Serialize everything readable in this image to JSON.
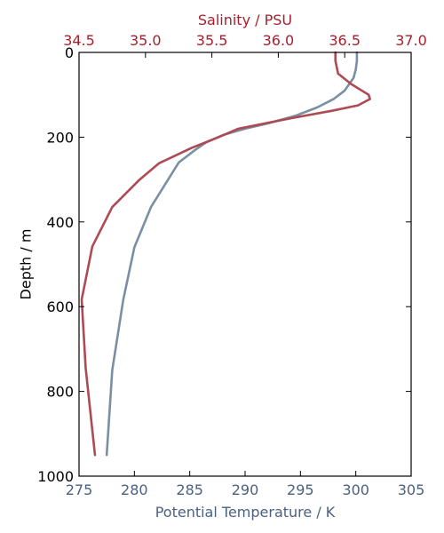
{
  "chart_data": {
    "type": "line",
    "title": "",
    "ylabel": "Depth / m",
    "xlabel_bottom": "Potential Temperature / K",
    "xlabel_top": "Salinity / PSU",
    "ylim": [
      1000,
      0
    ],
    "xlim_bottom": [
      275,
      305
    ],
    "xlim_top": [
      34.5,
      37.0
    ],
    "y_ticks": [
      "0",
      "200",
      "400",
      "600",
      "800",
      "1000"
    ],
    "y_tick_values": [
      0,
      200,
      400,
      600,
      800,
      1000
    ],
    "x_ticks_bottom": [
      "275",
      "280",
      "285",
      "290",
      "295",
      "300",
      "305"
    ],
    "x_tick_values_bottom": [
      275,
      280,
      285,
      290,
      295,
      300,
      305
    ],
    "x_ticks_top": [
      "34.5",
      "35.0",
      "35.5",
      "36.0",
      "36.5",
      "37.0"
    ],
    "x_tick_values_top": [
      34.5,
      35.0,
      35.5,
      36.0,
      36.5,
      37.0
    ],
    "grid": false,
    "series": [
      {
        "axis": "bottom",
        "color": "#7a8fa3",
        "points": [
          [
            300.1,
            0
          ],
          [
            300.1,
            20
          ],
          [
            300.0,
            40
          ],
          [
            299.8,
            60
          ],
          [
            299.0,
            90
          ],
          [
            298.0,
            110
          ],
          [
            296.5,
            130
          ],
          [
            294.5,
            150
          ],
          [
            292.0,
            168
          ],
          [
            290.0,
            180
          ],
          [
            288.0,
            195
          ],
          [
            286.5,
            212
          ],
          [
            285.5,
            230
          ],
          [
            284.0,
            260
          ],
          [
            283.0,
            302
          ],
          [
            281.5,
            365
          ],
          [
            280.0,
            460
          ],
          [
            279.0,
            583
          ],
          [
            278.0,
            750
          ],
          [
            277.5,
            950
          ]
        ]
      },
      {
        "axis": "top",
        "color": "#ad4a53",
        "points": [
          [
            36.43,
            0
          ],
          [
            36.43,
            20
          ],
          [
            36.45,
            50
          ],
          [
            36.55,
            75
          ],
          [
            36.68,
            100
          ],
          [
            36.69,
            110
          ],
          [
            36.6,
            125
          ],
          [
            36.4,
            138
          ],
          [
            36.1,
            155
          ],
          [
            35.7,
            180
          ],
          [
            35.55,
            200
          ],
          [
            35.35,
            225
          ],
          [
            35.1,
            262
          ],
          [
            34.95,
            302
          ],
          [
            34.75,
            365
          ],
          [
            34.6,
            458
          ],
          [
            34.52,
            583
          ],
          [
            34.55,
            745
          ],
          [
            34.62,
            950
          ]
        ]
      }
    ],
    "colors": {
      "temperature_axis": "#4a6181",
      "salinity_axis": "#a8202c",
      "depth_axis": "#000000"
    }
  }
}
